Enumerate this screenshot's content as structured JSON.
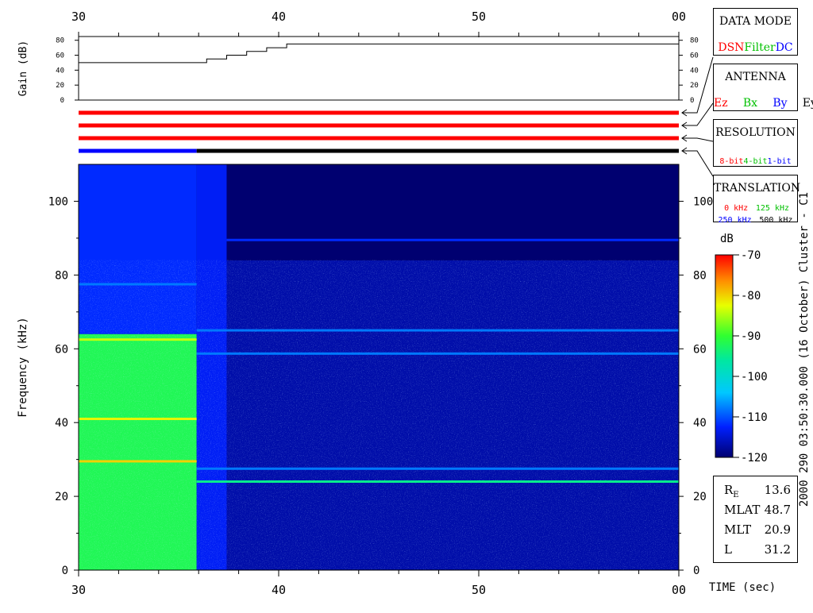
{
  "chart_data": {
    "type": "heatmap",
    "time_axis": {
      "label": "TIME (sec)",
      "ticks": [
        "30",
        "40",
        "50",
        "00"
      ],
      "range_sec": [
        30,
        60
      ]
    },
    "gain_panel": {
      "ylabel": "Gain (dB)",
      "ticks": [
        0,
        20,
        40,
        60,
        80
      ],
      "ylim": [
        0,
        85
      ],
      "series": [
        {
          "t": 30.0,
          "gain": 50
        },
        {
          "t": 36.4,
          "gain": 50
        },
        {
          "t": 36.4,
          "gain": 55
        },
        {
          "t": 37.4,
          "gain": 55
        },
        {
          "t": 37.4,
          "gain": 60
        },
        {
          "t": 38.4,
          "gain": 60
        },
        {
          "t": 38.4,
          "gain": 65
        },
        {
          "t": 39.4,
          "gain": 65
        },
        {
          "t": 39.4,
          "gain": 70
        },
        {
          "t": 40.4,
          "gain": 70
        },
        {
          "t": 40.4,
          "gain": 75
        },
        {
          "t": 60.0,
          "gain": 75
        }
      ]
    },
    "status_bars": [
      {
        "panel": "data_mode",
        "segments": [
          {
            "from": 30,
            "to": 60,
            "color": "#ff0000"
          }
        ]
      },
      {
        "panel": "antenna",
        "segments": [
          {
            "from": 30,
            "to": 60,
            "color": "#ff0000"
          }
        ]
      },
      {
        "panel": "resolution",
        "segments": [
          {
            "from": 30,
            "to": 60,
            "color": "#ff0000"
          }
        ]
      },
      {
        "panel": "translation",
        "segments": [
          {
            "from": 30,
            "to": 35.9,
            "color": "#0000ff"
          },
          {
            "from": 35.9,
            "to": 60,
            "color": "#000000"
          }
        ]
      }
    ],
    "spectrogram": {
      "ylabel": "Frequency (kHz)",
      "yticks": [
        0,
        20,
        40,
        60,
        80,
        100
      ],
      "ylim": [
        0,
        110
      ],
      "regions": [
        {
          "t_from": 30.0,
          "t_to": 35.9,
          "f_from": 0,
          "f_to": 64,
          "level_db": -92
        },
        {
          "t_from": 30.0,
          "t_to": 35.9,
          "f_from": 64,
          "f_to": 110,
          "level_db": -112
        },
        {
          "t_from": 35.9,
          "t_to": 37.4,
          "f_from": 0,
          "f_to": 110,
          "level_db": -113
        },
        {
          "t_from": 37.4,
          "t_to": 60.0,
          "f_from": 0,
          "f_to": 84,
          "level_db": -117
        },
        {
          "t_from": 37.4,
          "t_to": 60.0,
          "f_from": 84,
          "f_to": 110,
          "level_db": -121
        }
      ],
      "emission_lines": [
        {
          "t_from": 30.0,
          "t_to": 35.9,
          "f": 29.5,
          "level_db": -80
        },
        {
          "t_from": 30.0,
          "t_to": 35.9,
          "f": 41,
          "level_db": -82
        },
        {
          "t_from": 30.0,
          "t_to": 35.9,
          "f": 62.5,
          "level_db": -84
        },
        {
          "t_from": 30.0,
          "t_to": 35.9,
          "f": 77.5,
          "level_db": -108
        },
        {
          "t_from": 35.9,
          "t_to": 60.0,
          "f": 24,
          "level_db": -95
        },
        {
          "t_from": 35.9,
          "t_to": 60.0,
          "f": 27.5,
          "level_db": -108
        },
        {
          "t_from": 35.9,
          "t_to": 60.0,
          "f": 58.7,
          "level_db": -108
        },
        {
          "t_from": 35.9,
          "t_to": 60.0,
          "f": 65,
          "level_db": -108
        },
        {
          "t_from": 37.4,
          "t_to": 60.0,
          "f": 89.5,
          "level_db": -112
        }
      ]
    },
    "colorbar": {
      "unit": "dB",
      "ticks": [
        "-70",
        "-80",
        "-90",
        "-100",
        "-110",
        "-120"
      ],
      "range": [
        -120,
        -70
      ]
    },
    "caption": "2000 290 03:50:30.000 (16 October)  Cluster - C1"
  },
  "panels": {
    "data_mode": {
      "title": "DATA MODE",
      "options": [
        {
          "text": "DSN",
          "color": "#ff0000"
        },
        {
          "text": "Filter",
          "color": "#00c000"
        },
        {
          "text": "DC",
          "color": "#0000ff"
        }
      ]
    },
    "antenna": {
      "title": "ANTENNA",
      "options": [
        {
          "text": "Ez",
          "color": "#ff0000"
        },
        {
          "text": "Bx",
          "color": "#00c000"
        },
        {
          "text": "By",
          "color": "#0000ff"
        },
        {
          "text": "Ey",
          "color": "#000000"
        }
      ]
    },
    "resolution": {
      "title": "RESOLUTION",
      "options": [
        {
          "text": "8-bit",
          "color": "#ff0000"
        },
        {
          "text": "4-bit",
          "color": "#00c000"
        },
        {
          "text": "1-bit",
          "color": "#0000ff"
        }
      ]
    },
    "translation": {
      "title": "TRANSLATION",
      "options": [
        {
          "text": "0 kHz",
          "color": "#ff0000"
        },
        {
          "text": "125 kHz",
          "color": "#00c000"
        },
        {
          "text": "250 kHz",
          "color": "#0000ff"
        },
        {
          "text": "500 kHz",
          "color": "#000000"
        }
      ]
    }
  },
  "readout": {
    "re_label_main": "R",
    "re_label_sub": "E",
    "re_value": "13.6",
    "rows": [
      {
        "label": "MLAT",
        "value": "48.7"
      },
      {
        "label": "MLT",
        "value": "20.9"
      },
      {
        "label": "L",
        "value": "31.2"
      }
    ]
  }
}
